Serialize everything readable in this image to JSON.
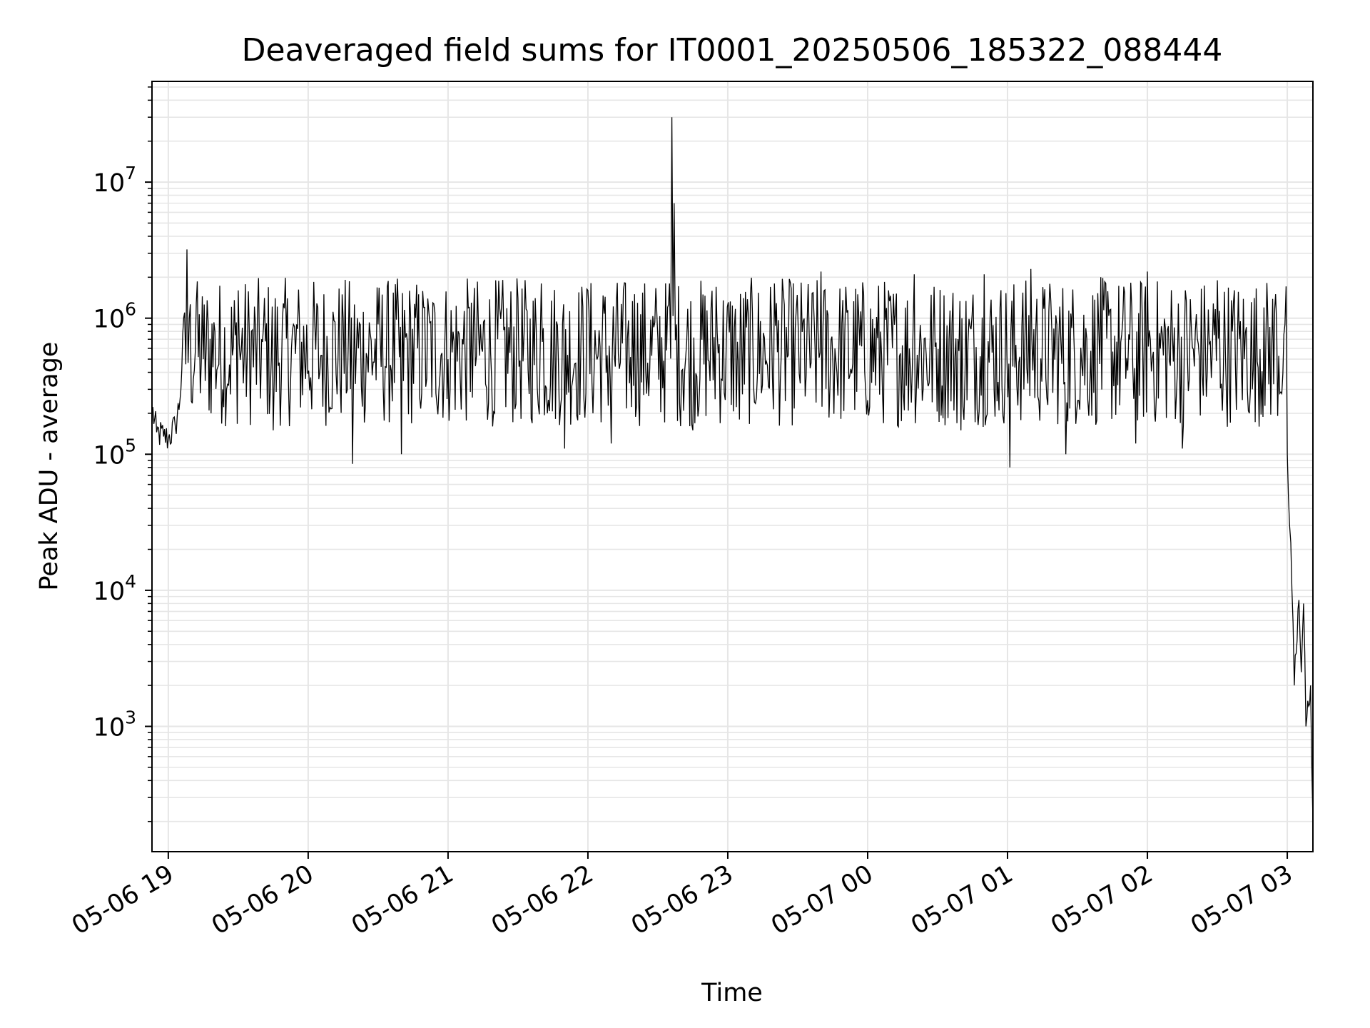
{
  "chart_data": {
    "type": "line",
    "title": "Deaveraged field sums for IT0001_20250506_185322_088444",
    "xlabel": "Time",
    "ylabel": "Peak ADU - average",
    "x_range": [
      "2025-05-06 18:53",
      "2025-05-07 03:11"
    ],
    "ylim": [
      120,
      55000000
    ],
    "y_scale": "log",
    "grid": true,
    "grid_color": "#e6e6e6",
    "line_color": "#000000",
    "x_ticks": [
      {
        "value": "2025-05-06 19:00",
        "label": "05-06 19"
      },
      {
        "value": "2025-05-06 20:00",
        "label": "05-06 20"
      },
      {
        "value": "2025-05-06 21:00",
        "label": "05-06 21"
      },
      {
        "value": "2025-05-06 22:00",
        "label": "05-06 22"
      },
      {
        "value": "2025-05-06 23:00",
        "label": "05-06 23"
      },
      {
        "value": "2025-05-07 00:00",
        "label": "05-07 00"
      },
      {
        "value": "2025-05-07 01:00",
        "label": "05-07 01"
      },
      {
        "value": "2025-05-07 02:00",
        "label": "05-07 02"
      },
      {
        "value": "2025-05-07 03:00",
        "label": "05-07 03"
      }
    ],
    "y_ticks": [
      {
        "value": 1000,
        "base": "10",
        "exp": "3"
      },
      {
        "value": 10000,
        "base": "10",
        "exp": "4"
      },
      {
        "value": 100000,
        "base": "10",
        "exp": "5"
      },
      {
        "value": 1000000,
        "base": "10",
        "exp": "6"
      },
      {
        "value": 10000000,
        "base": "10",
        "exp": "7"
      }
    ],
    "series": [
      {
        "points": [
          [
            "2025-05-06 18:53",
            220000
          ],
          [
            "2025-05-06 18:55",
            145000
          ],
          [
            "2025-05-06 18:58",
            135000
          ],
          [
            "2025-05-06 19:00",
            130000
          ],
          [
            "2025-05-06 19:03",
            160000
          ],
          [
            "2025-05-06 19:05",
            250000
          ],
          [
            "2025-05-06 19:07",
            1100000
          ],
          [
            "2025-05-06 19:08",
            3200000
          ],
          [
            "2025-05-06 19:09",
            1000000
          ],
          [
            "2025-05-06 19:12",
            1300000
          ],
          [
            "2025-05-06 19:15",
            500000
          ],
          [
            "2025-05-06 19:20",
            800000
          ],
          [
            "2025-05-06 19:25",
            300000
          ],
          [
            "2025-05-06 19:30",
            1600000
          ],
          [
            "2025-05-06 19:40",
            700000
          ],
          [
            "2025-05-06 19:45",
            150000
          ],
          [
            "2025-05-06 19:55",
            900000
          ],
          [
            "2025-05-06 20:05",
            400000
          ],
          [
            "2025-05-06 20:15",
            1000000
          ],
          [
            "2025-05-06 20:19",
            85000
          ],
          [
            "2025-05-06 20:30",
            900000
          ],
          [
            "2025-05-06 20:40",
            100000
          ],
          [
            "2025-05-06 20:50",
            1200000
          ],
          [
            "2025-05-06 21:00",
            500000
          ],
          [
            "2025-05-06 21:10",
            1300000
          ],
          [
            "2025-05-06 21:20",
            200000
          ],
          [
            "2025-05-06 21:30",
            1400000
          ],
          [
            "2025-05-06 21:40",
            1800000
          ],
          [
            "2025-05-06 21:50",
            110000
          ],
          [
            "2025-05-06 22:00",
            1600000
          ],
          [
            "2025-05-06 22:10",
            120000
          ],
          [
            "2025-05-06 22:20",
            1500000
          ],
          [
            "2025-05-06 22:30",
            700000
          ],
          [
            "2025-05-06 22:35",
            1800000
          ],
          [
            "2025-05-06 22:36",
            30000000
          ],
          [
            "2025-05-06 22:37",
            7000000
          ],
          [
            "2025-05-06 22:38",
            900000
          ],
          [
            "2025-05-06 22:45",
            150000
          ],
          [
            "2025-05-06 22:55",
            1700000
          ],
          [
            "2025-05-06 23:05",
            180000
          ],
          [
            "2025-05-06 23:20",
            1800000
          ],
          [
            "2025-05-06 23:40",
            2200000
          ],
          [
            "2025-05-07 00:00",
            250000
          ],
          [
            "2025-05-07 00:20",
            2100000
          ],
          [
            "2025-05-07 00:40",
            150000
          ],
          [
            "2025-05-07 00:50",
            2100000
          ],
          [
            "2025-05-07 01:01",
            80000
          ],
          [
            "2025-05-07 01:10",
            2300000
          ],
          [
            "2025-05-07 01:25",
            100000
          ],
          [
            "2025-05-07 01:40",
            2000000
          ],
          [
            "2025-05-07 01:55",
            120000
          ],
          [
            "2025-05-07 02:00",
            2200000
          ],
          [
            "2025-05-07 02:15",
            110000
          ],
          [
            "2025-05-07 02:30",
            1900000
          ],
          [
            "2025-05-07 02:45",
            300000
          ],
          [
            "2025-05-07 02:50",
            1200000
          ],
          [
            "2025-05-07 02:55",
            1500000
          ],
          [
            "2025-05-07 02:59",
            900000
          ],
          [
            "2025-05-07 03:00",
            100000
          ],
          [
            "2025-05-07 03:01",
            30000
          ],
          [
            "2025-05-07 03:02",
            10000
          ],
          [
            "2025-05-07 03:03",
            2000
          ],
          [
            "2025-05-07 03:05",
            8500
          ],
          [
            "2025-05-07 03:06",
            2500
          ],
          [
            "2025-05-07 03:07",
            8000
          ],
          [
            "2025-05-07 03:08",
            1000
          ],
          [
            "2025-05-07 03:10",
            2000
          ],
          [
            "2025-05-07 03:11",
            200
          ]
        ]
      }
    ]
  }
}
